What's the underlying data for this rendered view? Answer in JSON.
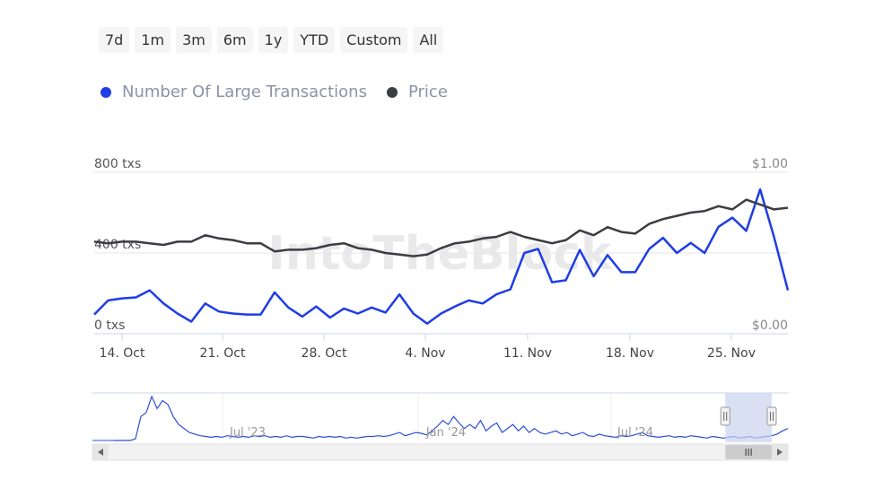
{
  "range_buttons": [
    "7d",
    "1m",
    "3m",
    "6m",
    "1y",
    "YTD",
    "Custom",
    "All"
  ],
  "legend": [
    {
      "label": "Number Of Large Transactions",
      "color": "#1f3de6"
    },
    {
      "label": "Price",
      "color": "#3a3d42"
    }
  ],
  "watermark": "IntoTheBlock",
  "colors": {
    "transactions": "#1f3de6",
    "price": "#3a3d42",
    "navigator_fill": "#c9d3ee",
    "navigator_line": "#2b4fd6"
  },
  "chart_data": {
    "type": "line",
    "x_labels": [
      "14. Oct",
      "21. Oct",
      "28. Oct",
      "4. Nov",
      "11. Nov",
      "18. Nov",
      "25. Nov"
    ],
    "y_left": {
      "ticks": [
        "800 txs",
        "400 txs",
        "0 txs"
      ],
      "range": [
        0,
        800
      ]
    },
    "y_right": {
      "ticks": [
        "$1.00",
        "$0.00"
      ],
      "range": [
        0,
        1
      ]
    },
    "series": [
      {
        "name": "Number Of Large Transactions",
        "axis": "left",
        "values": [
          95,
          165,
          175,
          180,
          215,
          150,
          100,
          60,
          150,
          110,
          100,
          95,
          95,
          205,
          130,
          85,
          135,
          80,
          125,
          100,
          130,
          105,
          195,
          100,
          50,
          100,
          135,
          165,
          150,
          195,
          220,
          400,
          420,
          255,
          265,
          415,
          285,
          390,
          305,
          305,
          420,
          475,
          400,
          450,
          400,
          530,
          575,
          510,
          715,
          480,
          215
        ]
      },
      {
        "name": "Price",
        "axis": "right",
        "values": [
          0.57,
          0.56,
          0.57,
          0.57,
          0.56,
          0.55,
          0.57,
          0.57,
          0.61,
          0.59,
          0.58,
          0.56,
          0.56,
          0.51,
          0.52,
          0.52,
          0.53,
          0.55,
          0.56,
          0.53,
          0.52,
          0.5,
          0.49,
          0.48,
          0.49,
          0.53,
          0.56,
          0.57,
          0.59,
          0.6,
          0.63,
          0.6,
          0.58,
          0.56,
          0.58,
          0.64,
          0.61,
          0.66,
          0.63,
          0.62,
          0.68,
          0.71,
          0.73,
          0.75,
          0.76,
          0.79,
          0.77,
          0.83,
          0.8,
          0.77,
          0.78
        ]
      }
    ],
    "navigator": {
      "x_labels": [
        "Jul '23",
        "Jan '24",
        "Jul '24"
      ],
      "values": [
        0,
        0,
        0,
        0,
        2,
        30,
        35,
        55,
        40,
        50,
        45,
        30,
        20,
        15,
        10,
        8,
        6,
        5,
        4,
        5,
        4,
        6,
        5,
        4,
        5,
        4,
        6,
        5,
        6,
        4,
        5,
        4,
        6,
        4,
        5,
        5,
        4,
        3,
        5,
        4,
        5,
        4,
        5,
        3,
        4,
        3,
        4,
        5,
        5,
        6,
        5,
        6,
        8,
        10,
        6,
        8,
        10,
        9,
        7,
        12,
        18,
        25,
        20,
        30,
        22,
        15,
        20,
        15,
        25,
        12,
        18,
        22,
        10,
        15,
        20,
        12,
        18,
        10,
        15,
        10,
        8,
        10,
        12,
        8,
        10,
        6,
        8,
        10,
        6,
        5,
        8,
        6,
        5,
        4,
        6,
        5,
        6,
        8,
        10,
        6,
        5,
        4,
        5,
        6,
        4,
        5,
        4,
        6,
        5,
        4,
        3,
        5,
        4,
        3,
        4,
        5,
        3,
        4,
        5,
        3,
        4,
        5,
        6,
        8,
        12,
        15
      ],
      "selection": [
        0.91,
        1.0
      ]
    }
  }
}
